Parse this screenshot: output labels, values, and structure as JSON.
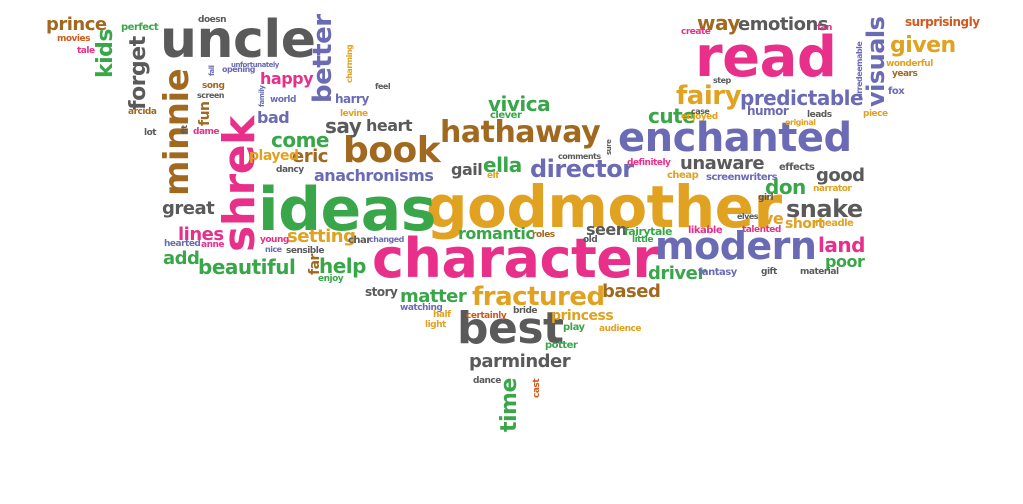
{
  "title": "",
  "colors": {
    "pink": "#e8308a",
    "orange": "#e0a220",
    "purple": "#6b6bb5",
    "green": "#3aa64a",
    "grey": "#5a5a5a",
    "brown": "#a0691f",
    "red": "#d05a1e",
    "dark": "#444444"
  },
  "words": [
    {
      "text": "godmother",
      "color": "orange"
    },
    {
      "text": "ideas",
      "color": "green"
    },
    {
      "text": "character",
      "color": "pink"
    },
    {
      "text": "read",
      "color": "pink"
    },
    {
      "text": "uncle",
      "color": "grey"
    },
    {
      "text": "shrek",
      "color": "pink"
    },
    {
      "text": "enchanted",
      "color": "purple"
    },
    {
      "text": "modern",
      "color": "purple"
    },
    {
      "text": "best",
      "color": "grey"
    },
    {
      "text": "hathaway",
      "color": "brown"
    },
    {
      "text": "book",
      "color": "brown"
    },
    {
      "text": "minnie",
      "color": "brown"
    },
    {
      "text": "fractured",
      "color": "orange"
    },
    {
      "text": "director",
      "color": "purple"
    },
    {
      "text": "visuals",
      "color": "purple"
    },
    {
      "text": "fairy",
      "color": "orange"
    },
    {
      "text": "predictable",
      "color": "purple"
    },
    {
      "text": "better",
      "color": "purple"
    },
    {
      "text": "forget",
      "color": "grey"
    },
    {
      "text": "kids",
      "color": "green"
    },
    {
      "text": "given",
      "color": "orange"
    },
    {
      "text": "snake",
      "color": "grey"
    },
    {
      "text": "time",
      "color": "green"
    },
    {
      "text": "emotions",
      "color": "grey"
    },
    {
      "text": "way",
      "color": "brown"
    },
    {
      "text": "unaware",
      "color": "grey"
    },
    {
      "text": "cute",
      "color": "green"
    },
    {
      "text": "vivica",
      "color": "green"
    },
    {
      "text": "prince",
      "color": "brown"
    },
    {
      "text": "heart",
      "color": "grey"
    },
    {
      "text": "say",
      "color": "grey"
    },
    {
      "text": "come",
      "color": "green"
    },
    {
      "text": "happy",
      "color": "pink"
    },
    {
      "text": "bad",
      "color": "purple"
    },
    {
      "text": "anachronisms",
      "color": "purple"
    },
    {
      "text": "ella",
      "color": "green"
    },
    {
      "text": "gail",
      "color": "grey"
    },
    {
      "text": "eric",
      "color": "brown"
    },
    {
      "text": "played",
      "color": "orange"
    },
    {
      "text": "great",
      "color": "grey"
    },
    {
      "text": "lines",
      "color": "pink"
    },
    {
      "text": "setting",
      "color": "orange"
    },
    {
      "text": "beautiful",
      "color": "green"
    },
    {
      "text": "help",
      "color": "green"
    },
    {
      "text": "add",
      "color": "green"
    },
    {
      "text": "romantic",
      "color": "green"
    },
    {
      "text": "seen",
      "color": "grey"
    },
    {
      "text": "matter",
      "color": "green"
    },
    {
      "text": "story",
      "color": "grey"
    },
    {
      "text": "based",
      "color": "brown"
    },
    {
      "text": "princess",
      "color": "orange"
    },
    {
      "text": "parminder",
      "color": "grey"
    },
    {
      "text": "don",
      "color": "green"
    },
    {
      "text": "good",
      "color": "grey"
    },
    {
      "text": "land",
      "color": "pink"
    },
    {
      "text": "poor",
      "color": "green"
    },
    {
      "text": "driver",
      "color": "green"
    },
    {
      "text": "short",
      "color": "orange"
    },
    {
      "text": "ve",
      "color": "orange"
    },
    {
      "text": "fun",
      "color": "brown"
    },
    {
      "text": "far",
      "color": "brown"
    },
    {
      "text": "harry",
      "color": "purple"
    },
    {
      "text": "perfect",
      "color": "green"
    },
    {
      "text": "movies",
      "color": "red"
    },
    {
      "text": "tale",
      "color": "pink"
    },
    {
      "text": "song",
      "color": "brown"
    },
    {
      "text": "world",
      "color": "purple"
    },
    {
      "text": "opening",
      "color": "purple"
    },
    {
      "text": "doesn",
      "color": "grey"
    },
    {
      "text": "create",
      "color": "pink"
    },
    {
      "text": "surprisingly",
      "color": "red"
    },
    {
      "text": "years",
      "color": "brown"
    },
    {
      "text": "wonderful",
      "color": "orange"
    },
    {
      "text": "fox",
      "color": "purple"
    },
    {
      "text": "clever",
      "color": "green"
    },
    {
      "text": "levine",
      "color": "orange"
    },
    {
      "text": "enjoyed",
      "color": "orange"
    },
    {
      "text": "humor",
      "color": "purple"
    },
    {
      "text": "leads",
      "color": "grey"
    },
    {
      "text": "piece",
      "color": "orange"
    },
    {
      "text": "effects",
      "color": "grey"
    },
    {
      "text": "screenwriters",
      "color": "purple"
    },
    {
      "text": "cheap",
      "color": "orange"
    },
    {
      "text": "definitely",
      "color": "pink"
    },
    {
      "text": "comments",
      "color": "grey"
    },
    {
      "text": "elf",
      "color": "orange"
    },
    {
      "text": "girl",
      "color": "grey"
    },
    {
      "text": "narrator",
      "color": "orange"
    },
    {
      "text": "meadle",
      "color": "orange"
    },
    {
      "text": "elves",
      "color": "grey"
    },
    {
      "text": "fairytale",
      "color": "green"
    },
    {
      "text": "likable",
      "color": "pink"
    },
    {
      "text": "little",
      "color": "green"
    },
    {
      "text": "talented",
      "color": "pink"
    },
    {
      "text": "fantasy",
      "color": "purple"
    },
    {
      "text": "gift",
      "color": "grey"
    },
    {
      "text": "material",
      "color": "grey"
    },
    {
      "text": "roles",
      "color": "brown"
    },
    {
      "text": "old",
      "color": "grey"
    },
    {
      "text": "bride",
      "color": "grey"
    },
    {
      "text": "audience",
      "color": "orange"
    },
    {
      "text": "play",
      "color": "green"
    },
    {
      "text": "certainly",
      "color": "red"
    },
    {
      "text": "half",
      "color": "orange"
    },
    {
      "text": "watching",
      "color": "purple"
    },
    {
      "text": "light",
      "color": "orange"
    },
    {
      "text": "potter",
      "color": "green"
    },
    {
      "text": "dance",
      "color": "grey"
    },
    {
      "text": "cast",
      "color": "red"
    },
    {
      "text": "enjoy",
      "color": "green"
    },
    {
      "text": "sensible",
      "color": "grey"
    },
    {
      "text": "nice",
      "color": "purple"
    },
    {
      "text": "young",
      "color": "pink"
    },
    {
      "text": "char",
      "color": "grey"
    },
    {
      "text": "changed",
      "color": "purple"
    },
    {
      "text": "anne",
      "color": "pink"
    },
    {
      "text": "hearted",
      "color": "purple"
    },
    {
      "text": "dancy",
      "color": "grey"
    },
    {
      "text": "dame",
      "color": "pink"
    },
    {
      "text": "lot",
      "color": "grey"
    },
    {
      "text": "arcida",
      "color": "brown"
    },
    {
      "text": "screen",
      "color": "grey"
    },
    {
      "text": "charming",
      "color": "orange"
    },
    {
      "text": "fan",
      "color": "pink"
    },
    {
      "text": "step",
      "color": "grey"
    },
    {
      "text": "case",
      "color": "grey"
    },
    {
      "text": "original",
      "color": "orange"
    },
    {
      "text": "irredeemable",
      "color": "purple"
    },
    {
      "text": "unfortunately",
      "color": "purple"
    },
    {
      "text": "fall",
      "color": "purple"
    },
    {
      "text": "family",
      "color": "purple"
    },
    {
      "text": "feel",
      "color": "grey"
    },
    {
      "text": "fit",
      "color": "grey"
    },
    {
      "text": "sure",
      "color": "grey"
    }
  ]
}
